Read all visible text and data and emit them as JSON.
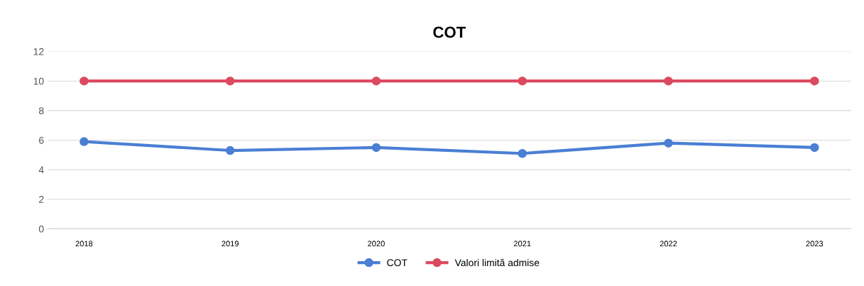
{
  "chart_data": {
    "type": "line",
    "title": "COT",
    "categories": [
      "2018",
      "2019",
      "2020",
      "2021",
      "2022",
      "2023"
    ],
    "series": [
      {
        "name": "COT",
        "color": "#4a7fd4",
        "values": [
          5.9,
          5.3,
          5.5,
          5.1,
          5.8,
          5.5
        ]
      },
      {
        "name": "Valori limită admise",
        "color": "#dc4a5f",
        "values": [
          10,
          10,
          10,
          10,
          10,
          10
        ]
      }
    ],
    "ylim": [
      0,
      12
    ],
    "yticks": [
      0,
      2,
      4,
      6,
      8,
      10,
      12
    ],
    "grid": "y",
    "legend": "bottom",
    "marker": "circle",
    "line_style": "solid"
  }
}
